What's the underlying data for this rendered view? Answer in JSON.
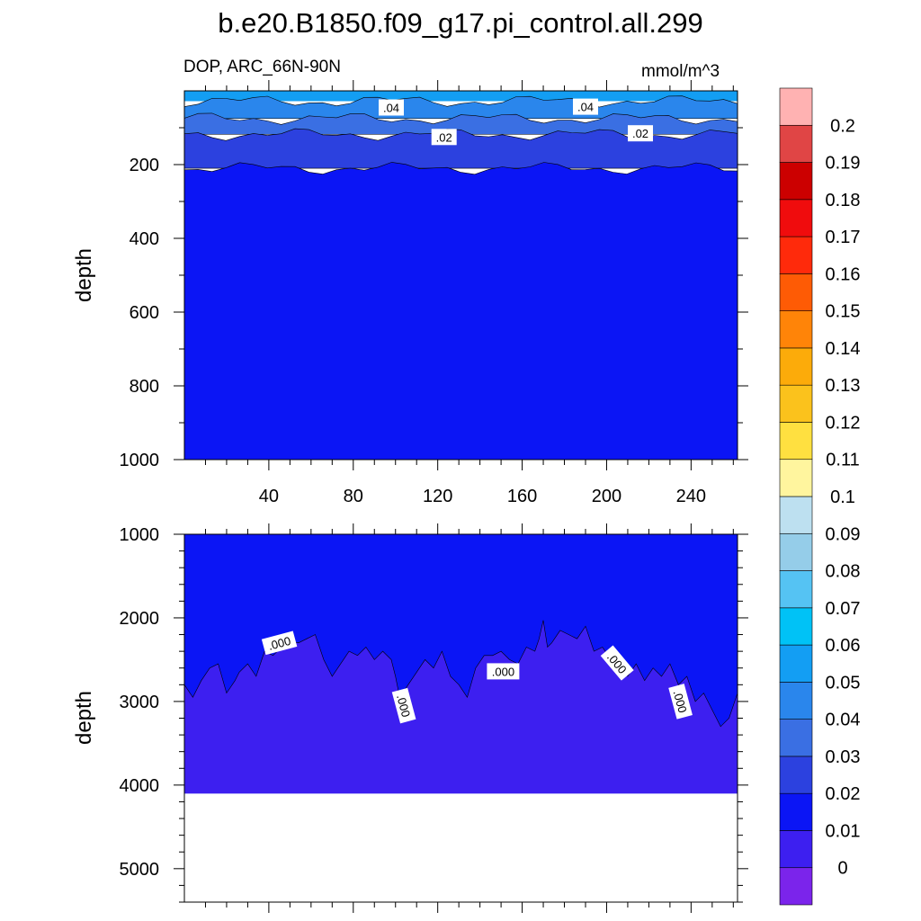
{
  "title": "b.e20.B1850.f09_g17.pi_control.all.299",
  "subtitle_left": "DOP, ARC_66N-90N",
  "subtitle_right": "mmol/m^3",
  "chart_data": [
    {
      "type": "heatmap",
      "panel": "upper",
      "xlabel": "",
      "ylabel": "depth",
      "xlim": [
        0,
        262
      ],
      "ylim": [
        1000,
        0
      ],
      "x_ticks": [
        40,
        80,
        120,
        160,
        200,
        240
      ],
      "x_tick_labels": [
        "40",
        "80",
        "120",
        "160",
        "200",
        "240"
      ],
      "y_ticks": [
        200,
        400,
        600,
        800,
        1000
      ],
      "y_tick_labels": [
        "200",
        "400",
        "600",
        "800",
        "1000"
      ],
      "bands": [
        {
          "level": 0.05,
          "top": 0,
          "bottom": 28
        },
        {
          "level": 0.04,
          "top": 28,
          "bottom": 75
        },
        {
          "level": 0.03,
          "top": 75,
          "bottom": 118
        },
        {
          "level": 0.02,
          "top": 118,
          "bottom": 210
        },
        {
          "level": 0.01,
          "top": 210,
          "bottom": 1000
        }
      ],
      "contour_labels": [
        {
          "text": ".04",
          "x": 98,
          "depth": 45
        },
        {
          "text": ".04",
          "x": 190,
          "depth": 43
        },
        {
          "text": ".02",
          "x": 123,
          "depth": 125
        },
        {
          "text": ".02",
          "x": 216,
          "depth": 115
        }
      ]
    },
    {
      "type": "heatmap",
      "panel": "lower",
      "xlabel": "",
      "ylabel": "depth",
      "xlim": [
        0,
        262
      ],
      "ylim": [
        5400,
        1000
      ],
      "y_ticks": [
        1000,
        2000,
        3000,
        4000,
        5000
      ],
      "y_tick_labels": [
        "1000",
        "2000",
        "3000",
        "4000",
        "5000"
      ],
      "ocean_bottom_depth": 4100,
      "boundary_x": [
        0,
        4,
        8,
        12,
        16,
        20,
        24,
        26,
        30,
        34,
        38,
        42,
        46,
        50,
        54,
        58,
        62,
        66,
        70,
        74,
        78,
        82,
        86,
        90,
        94,
        98,
        100,
        102,
        106,
        110,
        114,
        118,
        122,
        126,
        130,
        134,
        138,
        142,
        146,
        150,
        154,
        158,
        162,
        166,
        168,
        170,
        172,
        174,
        178,
        182,
        186,
        190,
        194,
        198,
        202,
        206,
        210,
        214,
        218,
        222,
        226,
        230,
        234,
        238,
        242,
        246,
        250,
        254,
        258,
        262
      ],
      "boundary_depth": [
        2800,
        2950,
        2750,
        2600,
        2550,
        2900,
        2750,
        2650,
        2550,
        2700,
        2400,
        2450,
        2350,
        2280,
        2300,
        2250,
        2200,
        2500,
        2700,
        2550,
        2400,
        2450,
        2350,
        2500,
        2400,
        2500,
        2700,
        2950,
        2800,
        2650,
        2500,
        2600,
        2400,
        2700,
        2800,
        2950,
        2600,
        2450,
        2450,
        2400,
        2500,
        2550,
        2350,
        2400,
        2250,
        2030,
        2350,
        2300,
        2150,
        2200,
        2250,
        2100,
        2400,
        2350,
        2500,
        2550,
        2700,
        2550,
        2750,
        2600,
        2700,
        2550,
        2800,
        2700,
        3000,
        2900,
        3100,
        3300,
        3200,
        2900
      ],
      "region_levels": {
        "above": 0.01,
        "below": 0
      },
      "contour_labels": [
        {
          "text": ".000",
          "x": 45,
          "depth": 2300,
          "angle": -15
        },
        {
          "text": ".000",
          "x": 104,
          "depth": 3050,
          "angle": 75
        },
        {
          "text": ".000",
          "x": 151,
          "depth": 2640,
          "angle": 0
        },
        {
          "text": ".000",
          "x": 205,
          "depth": 2540,
          "angle": 50
        },
        {
          "text": ".000",
          "x": 235,
          "depth": 3000,
          "angle": 75
        }
      ]
    }
  ],
  "colorbar": {
    "colors": [
      "#7b24eb",
      "#3d1ff0",
      "#0b15f5",
      "#2c41df",
      "#3a6fe3",
      "#2a86ec",
      "#139ef3",
      "#00c2f6",
      "#55c3f3",
      "#95cde9",
      "#bde0f0",
      "#fff59e",
      "#ffe040",
      "#fbc21c",
      "#fcab0a",
      "#ff8408",
      "#fe5b05",
      "#ff2a0b",
      "#f00c0d",
      "#cc0000",
      "#e04545",
      "#ffb2b2"
    ],
    "tick_labels": [
      "0",
      "0.01",
      "0.02",
      "0.03",
      "0.04",
      "0.05",
      "0.06",
      "0.07",
      "0.08",
      "0.09",
      "0.1",
      "0.11",
      "0.12",
      "0.13",
      "0.14",
      "0.15",
      "0.16",
      "0.17",
      "0.18",
      "0.19",
      "0.2"
    ]
  }
}
